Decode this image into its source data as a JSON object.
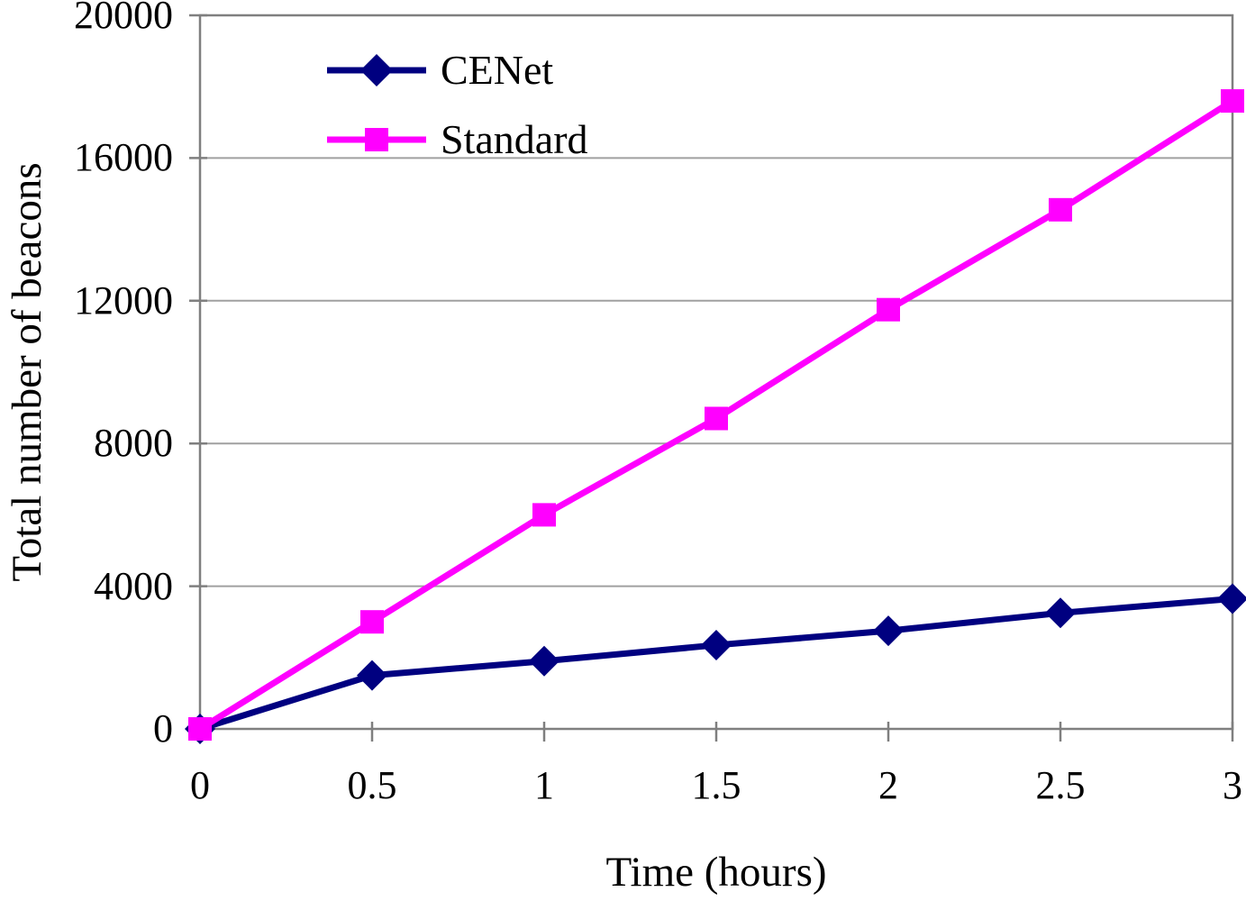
{
  "chart_data": {
    "type": "line",
    "title": "",
    "xlabel": "Time (hours)",
    "ylabel": "Total number of beacons",
    "x": [
      0,
      0.5,
      1,
      1.5,
      2,
      2.5,
      3
    ],
    "x_tick_labels": [
      "0",
      "0.5",
      "1",
      "1.5",
      "2",
      "2.5",
      "3"
    ],
    "y_ticks": [
      0,
      4000,
      8000,
      12000,
      16000,
      20000
    ],
    "y_tick_labels": [
      "0",
      "4000",
      "8000",
      "12000",
      "16000",
      "20000"
    ],
    "xlim": [
      0,
      3
    ],
    "ylim": [
      0,
      20000
    ],
    "grid": "horizontal",
    "legend_position": "top-left-inside",
    "axis_color": "#7f7f7f",
    "grid_color": "#a0a0a0",
    "background_color": "#ffffff",
    "series": [
      {
        "name": "CENet",
        "color": "#000080",
        "marker": "diamond",
        "line_width": 7,
        "values": [
          0,
          1500,
          1900,
          2350,
          2750,
          3250,
          3650
        ]
      },
      {
        "name": "Standard",
        "color": "#ff00ff",
        "marker": "square",
        "line_width": 7,
        "values": [
          0,
          3000,
          6000,
          8700,
          11750,
          14550,
          17600
        ]
      }
    ]
  }
}
